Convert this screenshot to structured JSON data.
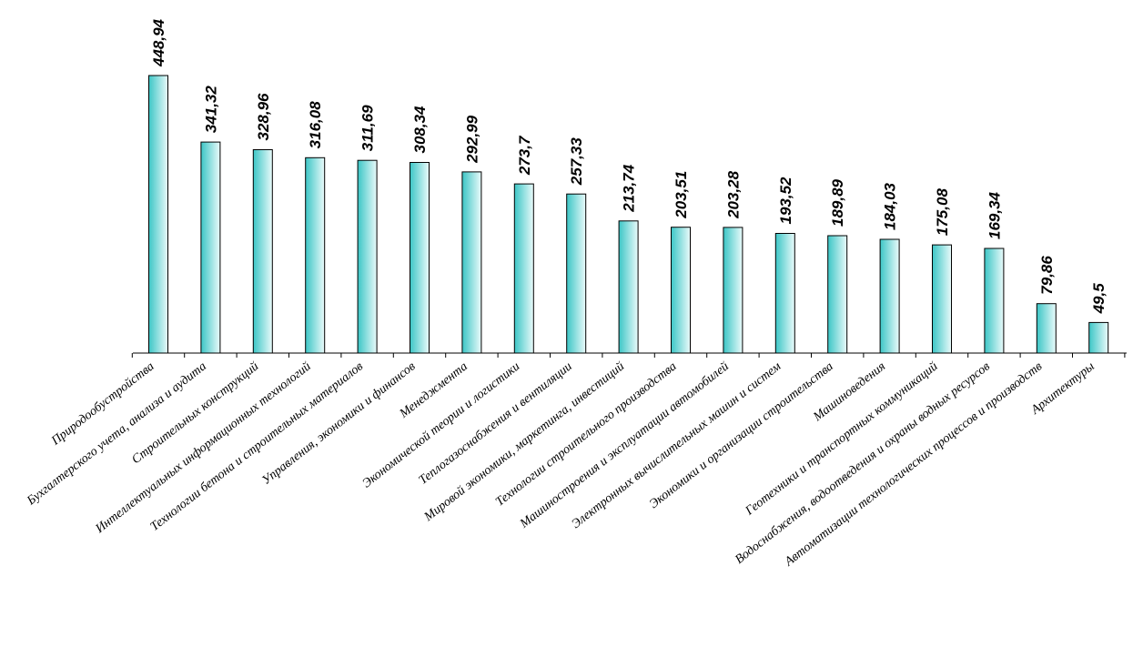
{
  "chart_data": {
    "type": "bar",
    "title": "",
    "xlabel": "",
    "ylabel": "",
    "ylim": [
      0,
      450
    ],
    "grid": false,
    "legend": "none",
    "bar_color": "#3cc6c6",
    "bar_highlight": "#eafafa",
    "categories": [
      "Природообустройства",
      "Бухгалтерского учета, анализа и аудита",
      "Строительных конструкций",
      "Интеллектуальных информационных технологий",
      "Технологии бетона и строительных материалов",
      "Управления, экономики и финансов",
      "Менеджмента",
      "Экономической теории и логистики",
      "Теплогазоснабжения и вентиляции",
      "Мировой экономики, маркетинга, инвестиций",
      "Технологии строительного производства",
      "Машиностроения и эксплуатации автомобилей",
      "Электронных вычислительных машин и систем",
      "Экономики и организации строительства",
      "Машиноведения",
      "Геотехники и транспортных коммуникаций",
      "Водоснабжения, водоотведения и охраны водных ресурсов",
      "Автоматизации технологических процессов и производств",
      "Архитектуры"
    ],
    "values": [
      448.94,
      341.32,
      328.96,
      316.08,
      311.69,
      308.34,
      292.99,
      273.7,
      257.33,
      213.74,
      203.51,
      203.28,
      193.52,
      189.89,
      184.03,
      175.08,
      169.34,
      79.86,
      49.5
    ],
    "value_labels": [
      "448,94",
      "341,32",
      "328,96",
      "316,08",
      "311,69",
      "308,34",
      "292,99",
      "273,7",
      "257,33",
      "213,74",
      "203,51",
      "203,28",
      "193,52",
      "189,89",
      "184,03",
      "175,08",
      "169,34",
      "79,86",
      "49,5"
    ]
  }
}
